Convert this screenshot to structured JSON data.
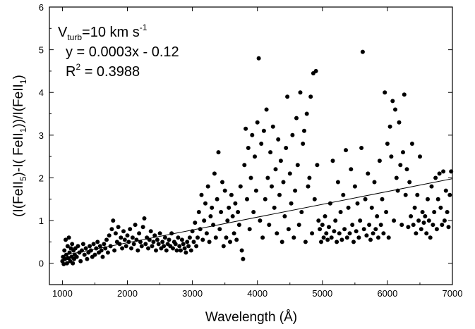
{
  "chart_data": {
    "type": "scatter",
    "title": "",
    "xlabel": "Wavelength (Å)",
    "ylabel_parts": [
      "(I(FeII",
      "5",
      ")-I( FeII",
      "1",
      "))/I(FeII",
      "1",
      ")"
    ],
    "xlim": [
      800,
      7000
    ],
    "ylim": [
      -0.5,
      6
    ],
    "x_ticks": [
      1000,
      2000,
      3000,
      4000,
      5000,
      6000,
      7000
    ],
    "y_ticks": [
      0,
      1,
      2,
      3,
      4,
      5,
      6
    ],
    "grid": false,
    "annotation": {
      "vturb": {
        "base": "V",
        "sub": "turb",
        "mid": "=10 km s",
        "sup": "-1"
      },
      "equation": "y = 0.0003x - 0.12",
      "r2": {
        "base": "R",
        "sup": "2",
        "rest": " = 0.3988"
      }
    },
    "fit_line": {
      "slope": 0.0003,
      "intercept": -0.12,
      "x_range": [
        1000,
        7000
      ]
    },
    "series": [
      {
        "marker_color": "#000000",
        "points": [
          [
            1000,
            0.05
          ],
          [
            1010,
            0.15
          ],
          [
            1020,
            -0.02
          ],
          [
            1030,
            0.3
          ],
          [
            1040,
            0.1
          ],
          [
            1050,
            0.55
          ],
          [
            1060,
            0.2
          ],
          [
            1070,
            0.0
          ],
          [
            1080,
            0.4
          ],
          [
            1090,
            0.12
          ],
          [
            1100,
            0.6
          ],
          [
            1110,
            0.25
          ],
          [
            1120,
            0.05
          ],
          [
            1130,
            0.35
          ],
          [
            1140,
            0.15
          ],
          [
            1150,
            0.45
          ],
          [
            1160,
            0.0
          ],
          [
            1170,
            0.3
          ],
          [
            1180,
            0.1
          ],
          [
            1190,
            0.2
          ],
          [
            1200,
            0.35
          ],
          [
            1220,
            0.15
          ],
          [
            1240,
            0.4
          ],
          [
            1260,
            0.25
          ],
          [
            1280,
            0.05
          ],
          [
            1300,
            0.3
          ],
          [
            1320,
            0.45
          ],
          [
            1340,
            0.2
          ],
          [
            1360,
            0.35
          ],
          [
            1380,
            0.1
          ],
          [
            1400,
            0.25
          ],
          [
            1420,
            0.4
          ],
          [
            1440,
            0.3
          ],
          [
            1460,
            0.15
          ],
          [
            1480,
            0.45
          ],
          [
            1500,
            0.2
          ],
          [
            1520,
            0.35
          ],
          [
            1540,
            0.5
          ],
          [
            1560,
            0.25
          ],
          [
            1580,
            0.4
          ],
          [
            1600,
            0.3
          ],
          [
            1620,
            0.15
          ],
          [
            1640,
            0.45
          ],
          [
            1660,
            0.35
          ],
          [
            1680,
            0.55
          ],
          [
            1700,
            0.25
          ],
          [
            1720,
            0.65
          ],
          [
            1740,
            0.4
          ],
          [
            1760,
            0.8
          ],
          [
            1780,
            1.0
          ],
          [
            1800,
            0.3
          ],
          [
            1820,
            0.7
          ],
          [
            1840,
            0.5
          ],
          [
            1860,
            0.85
          ],
          [
            1880,
            0.45
          ],
          [
            1900,
            0.6
          ],
          [
            1920,
            0.35
          ],
          [
            1940,
            0.75
          ],
          [
            1960,
            0.55
          ],
          [
            1980,
            0.4
          ],
          [
            2000,
            0.65
          ],
          [
            2020,
            0.5
          ],
          [
            2040,
            0.8
          ],
          [
            2060,
            0.35
          ],
          [
            2080,
            0.6
          ],
          [
            2100,
            0.45
          ],
          [
            2120,
            0.9
          ],
          [
            2140,
            0.55
          ],
          [
            2160,
            0.3
          ],
          [
            2180,
            0.7
          ],
          [
            2200,
            0.5
          ],
          [
            2220,
            0.4
          ],
          [
            2240,
            0.85
          ],
          [
            2260,
            1.05
          ],
          [
            2280,
            0.45
          ],
          [
            2300,
            0.6
          ],
          [
            2320,
            0.35
          ],
          [
            2340,
            0.55
          ],
          [
            2360,
            0.75
          ],
          [
            2380,
            0.4
          ],
          [
            2400,
            0.5
          ],
          [
            2420,
            0.65
          ],
          [
            2440,
            0.3
          ],
          [
            2460,
            0.55
          ],
          [
            2480,
            0.45
          ],
          [
            2500,
            0.7
          ],
          [
            2520,
            0.35
          ],
          [
            2540,
            0.5
          ],
          [
            2560,
            0.4
          ],
          [
            2580,
            0.6
          ],
          [
            2600,
            0.3
          ],
          [
            2620,
            0.45
          ],
          [
            2640,
            0.55
          ],
          [
            2660,
            0.4
          ],
          [
            2680,
            0.7
          ],
          [
            2700,
            0.35
          ],
          [
            2720,
            0.5
          ],
          [
            2740,
            0.45
          ],
          [
            2760,
            0.3
          ],
          [
            2780,
            0.6
          ],
          [
            2800,
            0.4
          ],
          [
            2820,
            0.3
          ],
          [
            2840,
            0.55
          ],
          [
            2860,
            0.45
          ],
          [
            2880,
            0.35
          ],
          [
            2900,
            0.25
          ],
          [
            2920,
            0.5
          ],
          [
            2940,
            0.4
          ],
          [
            2960,
            0.6
          ],
          [
            2980,
            0.3
          ],
          [
            3000,
            0.75
          ],
          [
            3020,
            0.5
          ],
          [
            3040,
            0.95
          ],
          [
            3060,
            0.4
          ],
          [
            3080,
            0.6
          ],
          [
            3100,
            1.2
          ],
          [
            3120,
            0.8
          ],
          [
            3140,
            1.6
          ],
          [
            3160,
            0.55
          ],
          [
            3180,
            1.0
          ],
          [
            3200,
            1.4
          ],
          [
            3220,
            0.7
          ],
          [
            3240,
            1.8
          ],
          [
            3260,
            0.5
          ],
          [
            3280,
            1.1
          ],
          [
            3300,
            1.3
          ],
          [
            3320,
            0.9
          ],
          [
            3340,
            2.1
          ],
          [
            3360,
            0.6
          ],
          [
            3380,
            1.5
          ],
          [
            3400,
            2.6
          ],
          [
            3420,
            0.8
          ],
          [
            3440,
            1.2
          ],
          [
            3460,
            1.9
          ],
          [
            3480,
            0.4
          ],
          [
            3500,
            1.7
          ],
          [
            3520,
            0.6
          ],
          [
            3540,
            1.0
          ],
          [
            3560,
            1.3
          ],
          [
            3580,
            0.5
          ],
          [
            3600,
            1.6
          ],
          [
            3620,
            1.1
          ],
          [
            3640,
            0.7
          ],
          [
            3660,
            1.4
          ],
          [
            3680,
            0.55
          ],
          [
            3700,
            1.2
          ],
          [
            3720,
            0.9
          ],
          [
            3740,
            1.8
          ],
          [
            3760,
            0.3
          ],
          [
            3780,
            0.1
          ],
          [
            3800,
            2.3
          ],
          [
            3820,
            3.15
          ],
          [
            3840,
            1.5
          ],
          [
            3860,
            2.7
          ],
          [
            3880,
            0.8
          ],
          [
            3900,
            2.0
          ],
          [
            3920,
            3.0
          ],
          [
            3940,
            1.2
          ],
          [
            3960,
            2.5
          ],
          [
            3980,
            1.7
          ],
          [
            4000,
            3.3
          ],
          [
            4020,
            4.8
          ],
          [
            4040,
            1.0
          ],
          [
            4060,
            2.8
          ],
          [
            4080,
            0.6
          ],
          [
            4100,
            3.1
          ],
          [
            4120,
            1.5
          ],
          [
            4140,
            3.6
          ],
          [
            4160,
            2.0
          ],
          [
            4180,
            0.9
          ],
          [
            4200,
            2.6
          ],
          [
            4220,
            1.8
          ],
          [
            4240,
            3.2
          ],
          [
            4260,
            1.3
          ],
          [
            4280,
            2.2
          ],
          [
            4300,
            0.7
          ],
          [
            4320,
            2.9
          ],
          [
            4340,
            1.6
          ],
          [
            4360,
            2.4
          ],
          [
            4380,
            0.5
          ],
          [
            4400,
            1.9
          ],
          [
            4420,
            1.1
          ],
          [
            4440,
            2.7
          ],
          [
            4460,
            3.9
          ],
          [
            4480,
            0.8
          ],
          [
            4500,
            2.1
          ],
          [
            4520,
            1.4
          ],
          [
            4540,
            3.0
          ],
          [
            4560,
            0.6
          ],
          [
            4580,
            1.7
          ],
          [
            4600,
            3.4
          ],
          [
            4620,
            2.3
          ],
          [
            4640,
            0.9
          ],
          [
            4660,
            4.0
          ],
          [
            4680,
            1.2
          ],
          [
            4700,
            2.8
          ],
          [
            4720,
            3.1
          ],
          [
            4740,
            0.5
          ],
          [
            4760,
            3.5
          ],
          [
            4780,
            1.8
          ],
          [
            4800,
            2.0
          ],
          [
            4820,
            3.9
          ],
          [
            4840,
            0.7
          ],
          [
            4860,
            4.45
          ],
          [
            4880,
            1.5
          ],
          [
            4900,
            4.5
          ],
          [
            4920,
            2.3
          ],
          [
            4940,
            1.0
          ],
          [
            4960,
            0.8
          ],
          [
            4980,
            0.5
          ],
          [
            5000,
            0.9
          ],
          [
            5020,
            0.6
          ],
          [
            5040,
            1.1
          ],
          [
            5060,
            0.7
          ],
          [
            5080,
            0.55
          ],
          [
            5100,
            0.85
          ],
          [
            5120,
            1.4
          ],
          [
            5140,
            0.6
          ],
          [
            5160,
            2.4
          ],
          [
            5180,
            0.75
          ],
          [
            5200,
            1.0
          ],
          [
            5220,
            0.5
          ],
          [
            5240,
            1.9
          ],
          [
            5260,
            0.7
          ],
          [
            5280,
            1.2
          ],
          [
            5300,
            0.55
          ],
          [
            5320,
            1.6
          ],
          [
            5340,
            0.8
          ],
          [
            5360,
            2.65
          ],
          [
            5380,
            0.6
          ],
          [
            5400,
            1.3
          ],
          [
            5420,
            0.7
          ],
          [
            5440,
            2.2
          ],
          [
            5460,
            0.9
          ],
          [
            5480,
            0.5
          ],
          [
            5500,
            1.8
          ],
          [
            5520,
            0.75
          ],
          [
            5540,
            1.4
          ],
          [
            5560,
            0.6
          ],
          [
            5580,
            1.0
          ],
          [
            5600,
            2.7
          ],
          [
            5620,
            4.95
          ],
          [
            5640,
            0.8
          ],
          [
            5660,
            1.5
          ],
          [
            5680,
            0.65
          ],
          [
            5700,
            2.1
          ],
          [
            5720,
            0.9
          ],
          [
            5740,
            0.55
          ],
          [
            5760,
            1.3
          ],
          [
            5780,
            0.7
          ],
          [
            5800,
            1.9
          ],
          [
            5820,
            0.8
          ],
          [
            5840,
            1.1
          ],
          [
            5860,
            0.6
          ],
          [
            5880,
            2.4
          ],
          [
            5900,
            0.9
          ],
          [
            5920,
            1.5
          ],
          [
            5940,
            0.7
          ],
          [
            5960,
            4.0
          ],
          [
            5980,
            1.2
          ],
          [
            6000,
            2.8
          ],
          [
            6020,
            0.6
          ],
          [
            6040,
            3.2
          ],
          [
            6060,
            2.5
          ],
          [
            6080,
            3.8
          ],
          [
            6100,
            1.0
          ],
          [
            6120,
            3.6
          ],
          [
            6140,
            2.0
          ],
          [
            6160,
            1.7
          ],
          [
            6180,
            3.3
          ],
          [
            6200,
            2.3
          ],
          [
            6220,
            0.9
          ],
          [
            6240,
            2.6
          ],
          [
            6260,
            3.95
          ],
          [
            6280,
            1.6
          ],
          [
            6300,
            2.2
          ],
          [
            6320,
            0.85
          ],
          [
            6340,
            1.9
          ],
          [
            6360,
            1.1
          ],
          [
            6380,
            2.8
          ],
          [
            6400,
            0.9
          ],
          [
            6420,
            1.3
          ],
          [
            6440,
            0.7
          ],
          [
            6460,
            1.6
          ],
          [
            6480,
            1.0
          ],
          [
            6500,
            2.5
          ],
          [
            6520,
            0.8
          ],
          [
            6540,
            1.2
          ],
          [
            6560,
            0.95
          ],
          [
            6580,
            1.1
          ],
          [
            6600,
            0.7
          ],
          [
            6620,
            1.5
          ],
          [
            6640,
            1.0
          ],
          [
            6660,
            0.6
          ],
          [
            6680,
            1.8
          ],
          [
            6700,
            0.9
          ],
          [
            6720,
            1.2
          ],
          [
            6740,
            2.0
          ],
          [
            6760,
            0.8
          ],
          [
            6780,
            1.5
          ],
          [
            6800,
            2.1
          ],
          [
            6820,
            1.3
          ],
          [
            6840,
            0.9
          ],
          [
            6860,
            2.15
          ],
          [
            6880,
            1.0
          ],
          [
            6900,
            1.7
          ],
          [
            6920,
            1.2
          ],
          [
            6940,
            0.85
          ],
          [
            6960,
            1.6
          ],
          [
            6980,
            2.15
          ]
        ]
      }
    ]
  }
}
